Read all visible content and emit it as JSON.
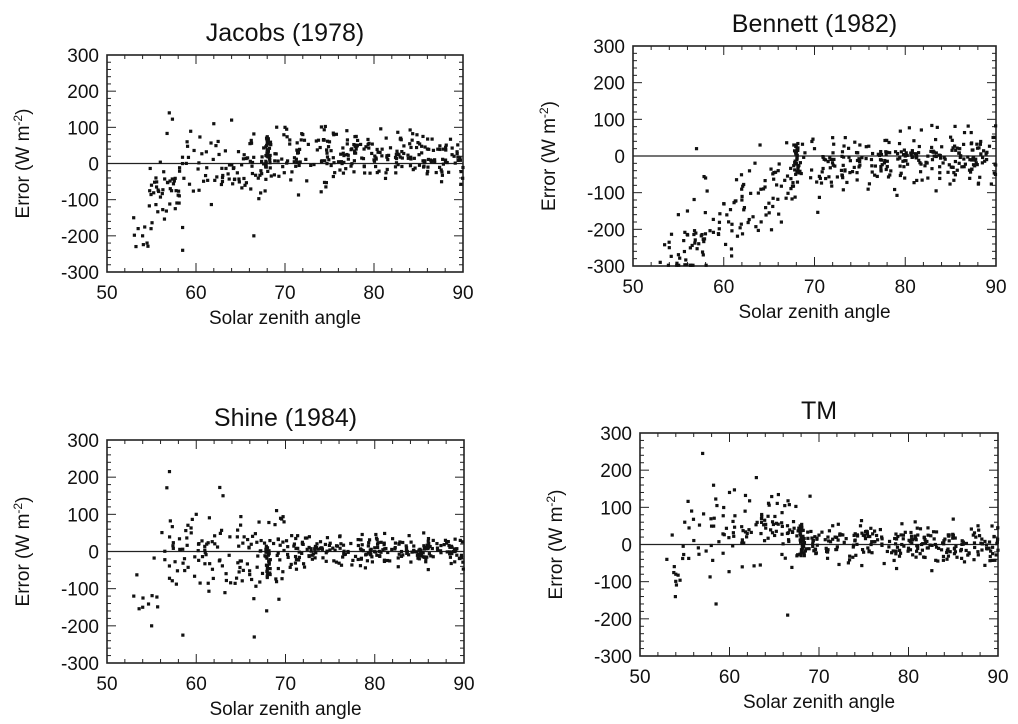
{
  "chart_data": [
    {
      "type": "scatter",
      "title": "Jacobs (1978)",
      "xlabel": "Solar zenith angle",
      "ylabel": "Error (W m",
      "ylabel_sup": "-2",
      "ylabel_close": ")",
      "xlim": [
        50,
        90
      ],
      "ylim": [
        -300,
        300
      ],
      "xticks": [
        50,
        60,
        70,
        80,
        90
      ],
      "yticks": [
        300,
        200,
        100,
        0,
        -100,
        -200,
        -300
      ],
      "reference_line": 0,
      "seed": 11,
      "points_sample": [
        [
          53,
          -150
        ],
        [
          53.5,
          -180
        ],
        [
          54,
          -200
        ],
        [
          54.5,
          -220
        ],
        [
          55,
          -60
        ],
        [
          55.5,
          -40
        ],
        [
          57,
          140
        ],
        [
          58.5,
          -240
        ],
        [
          59,
          60
        ],
        [
          62,
          110
        ],
        [
          64,
          120
        ],
        [
          66.5,
          -200
        ],
        [
          68,
          20
        ],
        [
          70,
          100
        ],
        [
          72,
          80
        ],
        [
          75,
          60
        ],
        [
          78,
          40
        ],
        [
          80,
          10
        ],
        [
          83,
          70
        ],
        [
          86,
          40
        ],
        [
          89,
          20
        ]
      ]
    },
    {
      "type": "scatter",
      "title": "Bennett (1982)",
      "xlabel": "Solar zenith angle",
      "ylabel": "Error (W m",
      "ylabel_sup": "-2",
      "ylabel_close": ")",
      "xlim": [
        50,
        90
      ],
      "ylim": [
        -300,
        300
      ],
      "xticks": [
        50,
        60,
        70,
        80,
        90
      ],
      "yticks": [
        300,
        200,
        100,
        0,
        -100,
        -200,
        -300
      ],
      "reference_line": 0,
      "seed": 23,
      "points_sample": [
        [
          53,
          -290
        ],
        [
          54,
          -250
        ],
        [
          55,
          -160
        ],
        [
          56,
          -150
        ],
        [
          57,
          20
        ],
        [
          58,
          -60
        ],
        [
          60,
          -130
        ],
        [
          62,
          -120
        ],
        [
          64,
          30
        ],
        [
          66,
          -40
        ],
        [
          68,
          -20
        ],
        [
          70,
          20
        ],
        [
          72,
          50
        ],
        [
          75,
          30
        ],
        [
          78,
          10
        ],
        [
          80,
          0
        ],
        [
          83,
          -10
        ],
        [
          86,
          20
        ],
        [
          89,
          10
        ]
      ]
    },
    {
      "type": "scatter",
      "title": "Shine (1984)",
      "xlabel": "Solar zenith angle",
      "ylabel": "Error (W m",
      "ylabel_sup": "-2",
      "ylabel_close": ")",
      "xlim": [
        50,
        90
      ],
      "ylim": [
        -300,
        300
      ],
      "xticks": [
        50,
        60,
        70,
        80,
        90
      ],
      "yticks": [
        300,
        200,
        100,
        0,
        -100,
        -200,
        -300
      ],
      "reference_line": 0,
      "seed": 37,
      "points_sample": [
        [
          53,
          -120
        ],
        [
          54,
          -150
        ],
        [
          55,
          -200
        ],
        [
          57,
          215
        ],
        [
          58.5,
          -225
        ],
        [
          60,
          100
        ],
        [
          63,
          150
        ],
        [
          66.5,
          -230
        ],
        [
          68,
          -60
        ],
        [
          69,
          110
        ],
        [
          71,
          20
        ],
        [
          74,
          10
        ],
        [
          77,
          0
        ],
        [
          80,
          10
        ],
        [
          83,
          0
        ],
        [
          86,
          10
        ],
        [
          89,
          0
        ]
      ]
    },
    {
      "type": "scatter",
      "title": "TM",
      "xlabel": "Solar zenith angle",
      "ylabel": "Error (W m",
      "ylabel_sup": "-2",
      "ylabel_close": ")",
      "xlim": [
        50,
        90
      ],
      "ylim": [
        -300,
        300
      ],
      "xticks": [
        50,
        60,
        70,
        80,
        90
      ],
      "yticks": [
        300,
        200,
        100,
        0,
        -100,
        -200,
        -300
      ],
      "reference_line": 0,
      "seed": 53,
      "points_sample": [
        [
          53,
          -40
        ],
        [
          54,
          -80
        ],
        [
          55,
          60
        ],
        [
          57,
          245
        ],
        [
          58.5,
          -160
        ],
        [
          60,
          140
        ],
        [
          63,
          180
        ],
        [
          66.5,
          -190
        ],
        [
          68,
          20
        ],
        [
          69,
          130
        ],
        [
          71,
          20
        ],
        [
          74,
          10
        ],
        [
          77,
          20
        ],
        [
          80,
          -10
        ],
        [
          83,
          0
        ],
        [
          86,
          10
        ],
        [
          89,
          -10
        ]
      ]
    }
  ]
}
